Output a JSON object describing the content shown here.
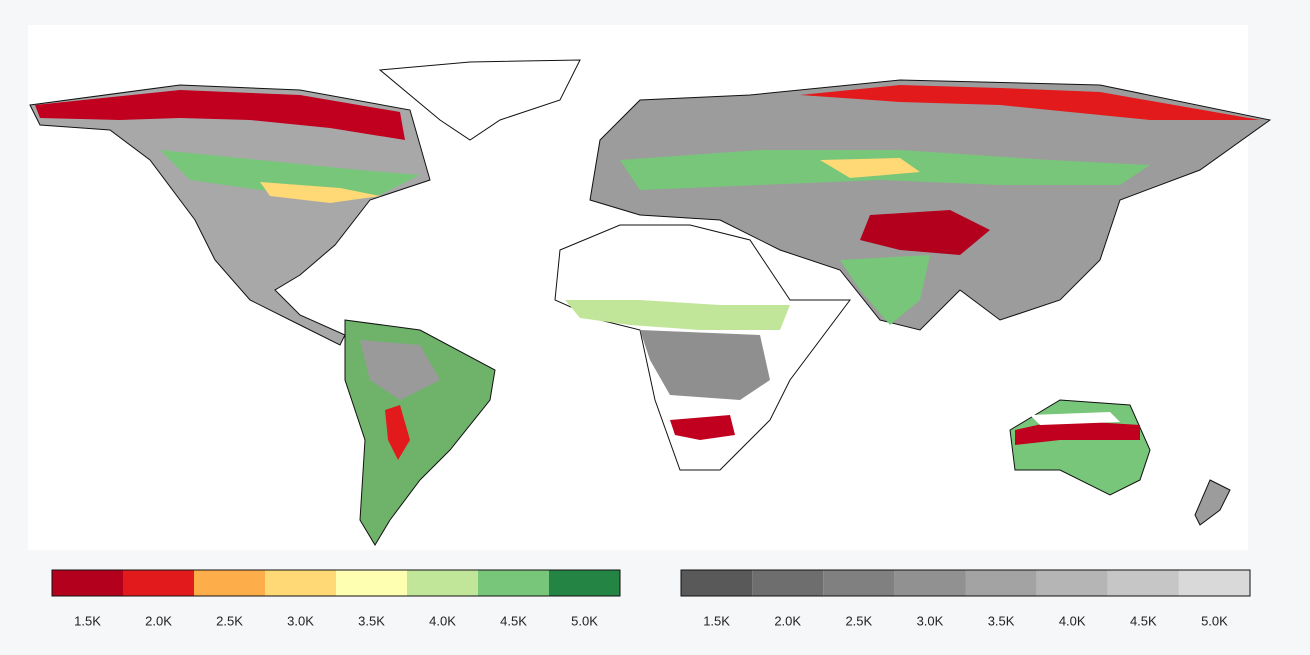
{
  "legends": [
    {
      "colors": [
        "#b2001d",
        "#e31a1c",
        "#fdae4b",
        "#fed976",
        "#ffffb2",
        "#c2e699",
        "#78c679",
        "#238443"
      ],
      "labels": [
        "1.5K",
        "2.0K",
        "2.5K",
        "3.0K",
        "3.5K",
        "4.0K",
        "4.5K",
        "5.0K"
      ]
    },
    {
      "colors": [
        "#595959",
        "#6e6e6e",
        "#808080",
        "#919191",
        "#a3a3a3",
        "#b5b5b5",
        "#c6c6c6",
        "#d9d9d9"
      ],
      "labels": [
        "1.5K",
        "2.0K",
        "2.5K",
        "3.0K",
        "3.5K",
        "4.0K",
        "4.5K",
        "5.0K"
      ]
    }
  ]
}
